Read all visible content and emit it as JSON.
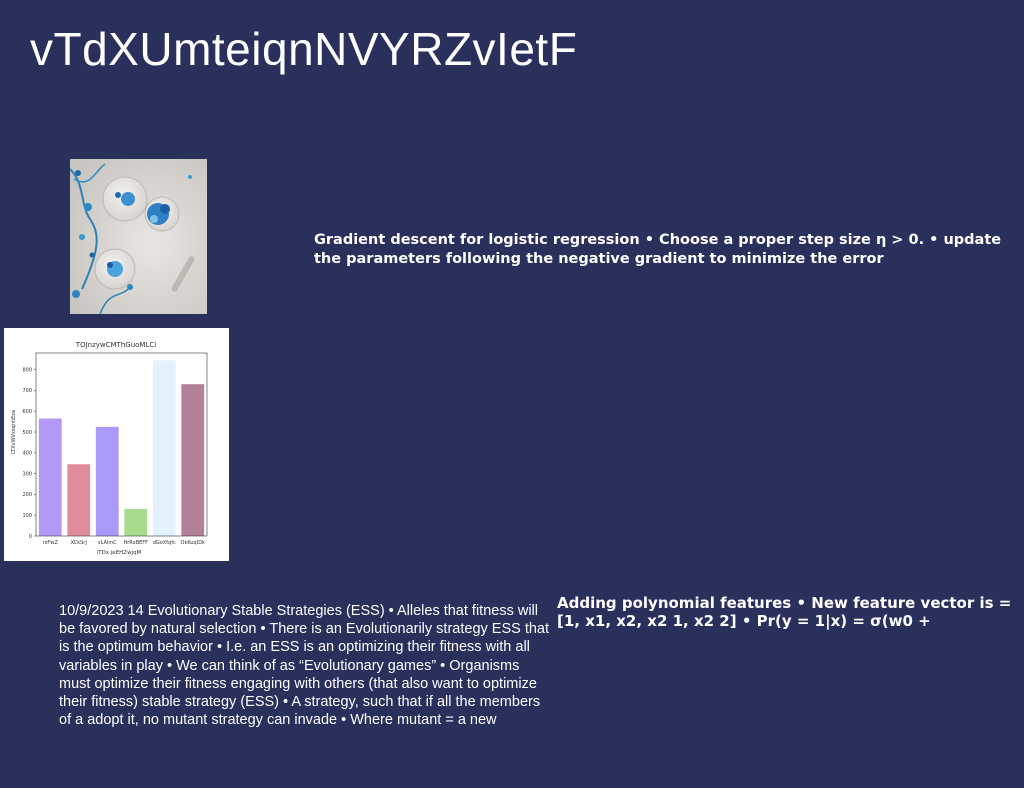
{
  "slide": {
    "title": "vTdXUmteiqnNVYRZvIetF",
    "gradient_text": "Gradient descent for logistic regression • Choose a proper step size η > 0. • update the parameters following the negative gradient to minimize the error",
    "ess_text": "10/9/2023 14 Evolutionary Stable Strategies (ESS) • Alleles that fitness will be favored by natural selection • There is an Evolutionarily strategy ESS that is the optimum behavior • I.e. an ESS is an optimizing their fitness with all variables in play • We can think of as “Evolutionary games” • Organisms must optimize their fitness engaging with others (that also want to optimize their fitness) stable strategy (ESS) • A strategy, such that if all the members of a adopt it, no mutant strategy can invade • Where mutant =  a new",
    "poly_text": "Adding polynomial features • New feature vector is = [1, x1, x2, x2 1, x2 2] • Pr(y = 1|x) = σ(w0 +"
  },
  "chart_data": {
    "type": "bar",
    "title": "TOJnzywCMThGuoMLCi",
    "xlabel": "iTDx jeEHZwjqM",
    "ylabel": "LTXvWVxsqnhEza",
    "categories": [
      "rzFwZ",
      "XCkSrJ",
      "vLAlmC",
      "HrRxBEFF",
      "dGoXfqfc",
      "OkKuqIDk"
    ],
    "values": [
      565,
      345,
      525,
      130,
      845,
      730
    ],
    "colors": [
      "#b399f5",
      "#e08c9b",
      "#a89af7",
      "#a9dc8f",
      "#e3f2fd",
      "#b48098"
    ],
    "yticks": [
      "0",
      "100",
      "200",
      "300",
      "400",
      "500",
      "600",
      "700",
      "800"
    ],
    "ylim": [
      0,
      880
    ]
  }
}
